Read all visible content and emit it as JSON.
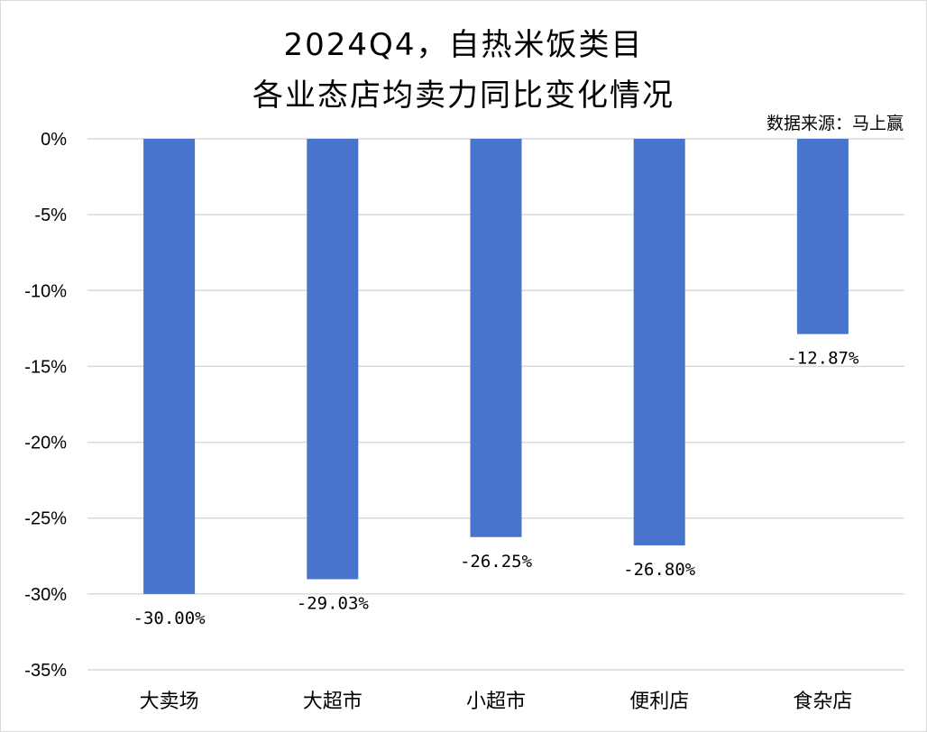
{
  "chart_data": {
    "type": "bar",
    "title_line1": "2024Q4，自热米饭类目",
    "title_line2": "各业态店均卖力同比变化情况",
    "source": "数据来源：马上赢",
    "categories": [
      "大卖场",
      "大超市",
      "小超市",
      "便利店",
      "食杂店"
    ],
    "values": [
      -30.0,
      -29.03,
      -26.25,
      -26.8,
      -12.87
    ],
    "value_labels": [
      "-30.00%",
      "-29.03%",
      "-26.25%",
      "-26.80%",
      "-12.87%"
    ],
    "y_ticks": [
      0,
      -5,
      -10,
      -15,
      -20,
      -25,
      -30,
      -35
    ],
    "y_tick_labels": [
      "0%",
      "-5%",
      "-10%",
      "-15%",
      "-20%",
      "-25%",
      "-30%",
      "-35%"
    ],
    "ylim": [
      -35,
      0
    ],
    "grid": true,
    "legend": "none",
    "bar_color": "#4874CB",
    "grid_color": "#D9D9D9"
  }
}
